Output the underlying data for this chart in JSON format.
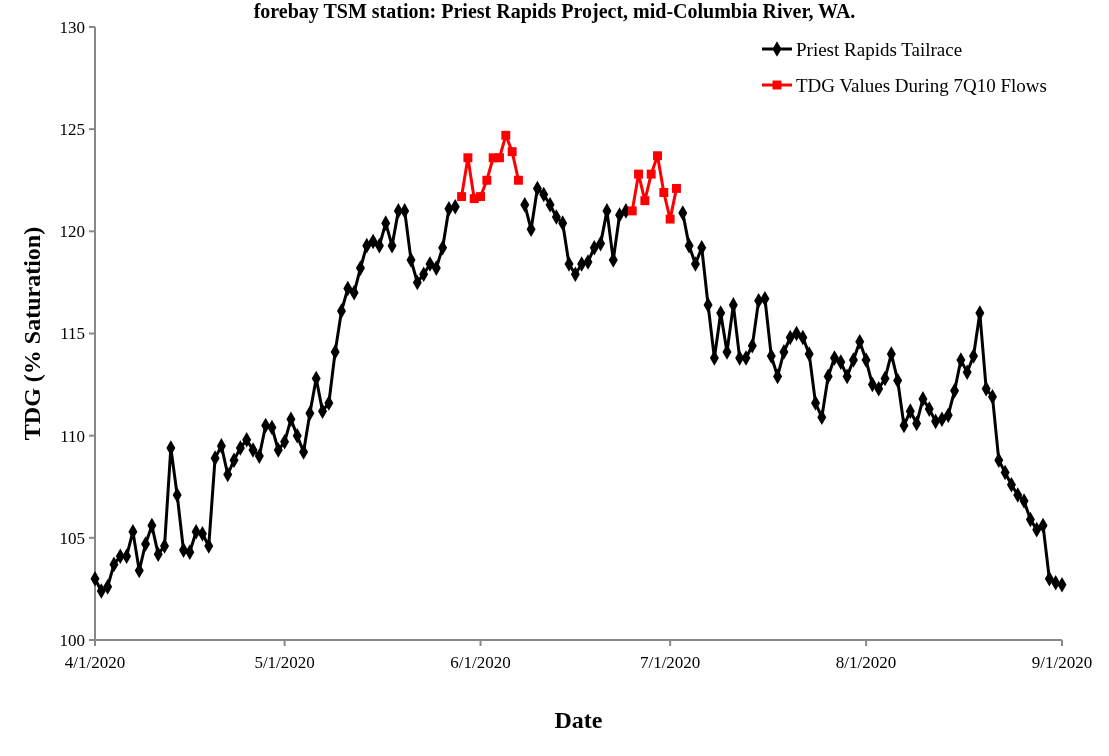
{
  "chart_data": {
    "type": "line",
    "title": "forebay TSM station: Priest Rapids Project, mid-Columbia River, WA.",
    "xlabel": "Date",
    "ylabel": "TDG (% Saturation)",
    "xlim": [
      "2020-04-01",
      "2020-09-01"
    ],
    "xticks": [
      {
        "value": "2020-04-01",
        "label": "4/1/2020"
      },
      {
        "value": "2020-05-01",
        "label": "5/1/2020"
      },
      {
        "value": "2020-06-01",
        "label": "6/1/2020"
      },
      {
        "value": "2020-07-01",
        "label": "7/1/2020"
      },
      {
        "value": "2020-08-01",
        "label": "8/1/2020"
      },
      {
        "value": "2020-09-01",
        "label": "9/1/2020"
      }
    ],
    "ylim": [
      100,
      130
    ],
    "yticks": [
      100,
      105,
      110,
      115,
      120,
      125,
      130
    ],
    "grid": false,
    "legend": "top right",
    "line_style": "solid",
    "series": [
      {
        "name": "Priest Rapids Tailrace",
        "color": "#000000",
        "marker": "diamond",
        "x": [
          "2020-04-01",
          "2020-04-02",
          "2020-04-03",
          "2020-04-04",
          "2020-04-05",
          "2020-04-06",
          "2020-04-07",
          "2020-04-08",
          "2020-04-09",
          "2020-04-10",
          "2020-04-11",
          "2020-04-12",
          "2020-04-13",
          "2020-04-14",
          "2020-04-15",
          "2020-04-16",
          "2020-04-17",
          "2020-04-18",
          "2020-04-19",
          "2020-04-20",
          "2020-04-21",
          "2020-04-22",
          "2020-04-23",
          "2020-04-24",
          "2020-04-25",
          "2020-04-26",
          "2020-04-27",
          "2020-04-28",
          "2020-04-29",
          "2020-04-30",
          "2020-05-01",
          "2020-05-02",
          "2020-05-03",
          "2020-05-04",
          "2020-05-05",
          "2020-05-06",
          "2020-05-07",
          "2020-05-08",
          "2020-05-09",
          "2020-05-10",
          "2020-05-11",
          "2020-05-12",
          "2020-05-13",
          "2020-05-14",
          "2020-05-15",
          "2020-05-16",
          "2020-05-17",
          "2020-05-18",
          "2020-05-19",
          "2020-05-20",
          "2020-05-21",
          "2020-05-22",
          "2020-05-23",
          "2020-05-24",
          "2020-05-25",
          "2020-05-26",
          "2020-05-27",
          "2020-05-28",
          "2020-05-29",
          "2020-06-08",
          "2020-06-09",
          "2020-06-10",
          "2020-06-11",
          "2020-06-12",
          "2020-06-13",
          "2020-06-14",
          "2020-06-15",
          "2020-06-16",
          "2020-06-17",
          "2020-06-18",
          "2020-06-19",
          "2020-06-20",
          "2020-06-21",
          "2020-06-22",
          "2020-06-23",
          "2020-06-24",
          "2020-06-25",
          "2020-07-03",
          "2020-07-04",
          "2020-07-05",
          "2020-07-06",
          "2020-07-07",
          "2020-07-08",
          "2020-07-09",
          "2020-07-10",
          "2020-07-11",
          "2020-07-12",
          "2020-07-13",
          "2020-07-14",
          "2020-07-15",
          "2020-07-16",
          "2020-07-17",
          "2020-07-18",
          "2020-07-19",
          "2020-07-20",
          "2020-07-21",
          "2020-07-22",
          "2020-07-23",
          "2020-07-24",
          "2020-07-25",
          "2020-07-26",
          "2020-07-27",
          "2020-07-28",
          "2020-07-29",
          "2020-07-30",
          "2020-07-31",
          "2020-08-01",
          "2020-08-02",
          "2020-08-03",
          "2020-08-04",
          "2020-08-05",
          "2020-08-06",
          "2020-08-07",
          "2020-08-08",
          "2020-08-09",
          "2020-08-10",
          "2020-08-11",
          "2020-08-12",
          "2020-08-13",
          "2020-08-14",
          "2020-08-15",
          "2020-08-16",
          "2020-08-17",
          "2020-08-18",
          "2020-08-19",
          "2020-08-20",
          "2020-08-21",
          "2020-08-22",
          "2020-08-23",
          "2020-08-24",
          "2020-08-25",
          "2020-08-26",
          "2020-08-27",
          "2020-08-28",
          "2020-08-29",
          "2020-08-30",
          "2020-08-31",
          "2020-09-01"
        ],
        "values": [
          103.0,
          102.4,
          102.6,
          103.7,
          104.1,
          104.1,
          105.3,
          103.4,
          104.7,
          105.6,
          104.2,
          104.6,
          109.4,
          107.1,
          104.4,
          104.3,
          105.3,
          105.2,
          104.6,
          108.9,
          109.5,
          108.1,
          108.8,
          109.4,
          109.8,
          109.3,
          109.0,
          110.5,
          110.4,
          109.3,
          109.7,
          110.8,
          110.0,
          109.2,
          111.1,
          112.8,
          111.2,
          111.6,
          114.1,
          116.1,
          117.2,
          117.0,
          118.2,
          119.3,
          119.5,
          119.3,
          120.4,
          119.3,
          121.0,
          121.0,
          118.6,
          117.5,
          117.9,
          118.4,
          118.2,
          119.2,
          121.1,
          121.2,
          null,
          121.3,
          120.1,
          122.1,
          121.8,
          121.3,
          120.7,
          120.4,
          118.4,
          117.9,
          118.4,
          118.5,
          119.2,
          119.4,
          121.0,
          118.6,
          120.8,
          121.0,
          null,
          120.9,
          119.3,
          118.4,
          119.2,
          116.4,
          113.8,
          116.0,
          114.1,
          116.4,
          113.8,
          113.8,
          114.4,
          116.6,
          116.7,
          113.9,
          112.9,
          114.1,
          114.8,
          115.0,
          114.8,
          114.0,
          111.6,
          110.9,
          112.9,
          113.8,
          113.6,
          112.9,
          113.7,
          114.6,
          113.7,
          112.5,
          112.3,
          112.8,
          114.0,
          112.7,
          110.5,
          111.2,
          110.6,
          111.8,
          111.3,
          110.7,
          110.8,
          111.0,
          112.2,
          113.7,
          113.1,
          113.9,
          116.0,
          112.3,
          111.9,
          108.8,
          108.2,
          107.6,
          107.1,
          106.8,
          105.9,
          105.4,
          105.6,
          103.0,
          102.8,
          102.7
        ]
      },
      {
        "name": "TDG Values During 7Q10 Flows",
        "color": "#ff0000",
        "marker": "square",
        "x": [
          "2020-05-29",
          "2020-05-30",
          "2020-05-31",
          "2020-06-01",
          "2020-06-02",
          "2020-06-03",
          "2020-06-04",
          "2020-06-05",
          "2020-06-06",
          "2020-06-07",
          "2020-06-08",
          "2020-06-25",
          "2020-06-26",
          "2020-06-27",
          "2020-06-28",
          "2020-06-29",
          "2020-06-30",
          "2020-07-01",
          "2020-07-02"
        ],
        "values": [
          121.7,
          123.6,
          121.6,
          121.7,
          122.5,
          123.6,
          123.6,
          124.7,
          123.9,
          122.5,
          null,
          121.0,
          122.8,
          121.5,
          122.8,
          123.7,
          121.9,
          120.6,
          122.1
        ]
      }
    ]
  }
}
